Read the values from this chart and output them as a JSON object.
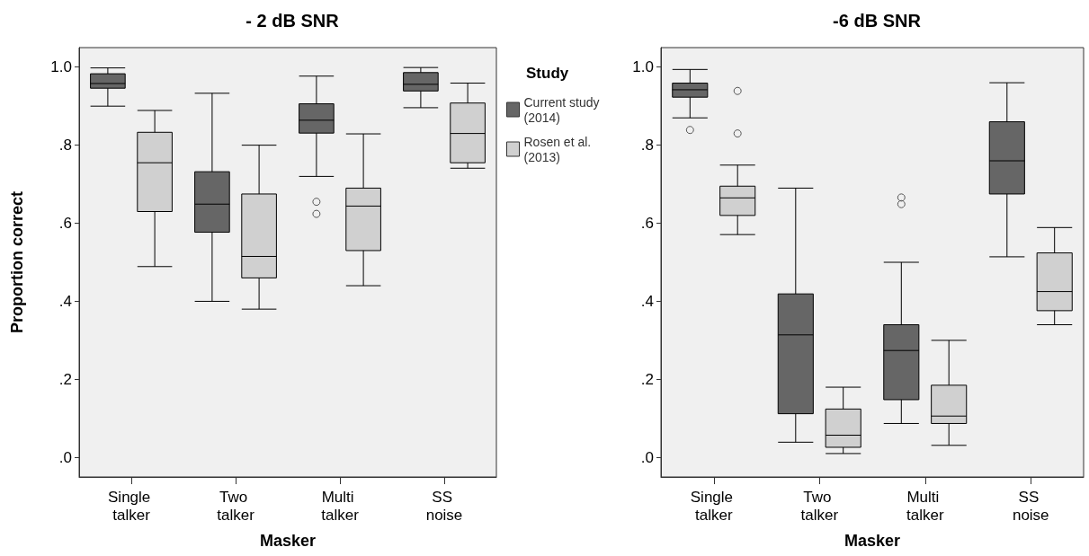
{
  "chart_data": [
    {
      "type": "box",
      "title": "- 2 dB SNR",
      "xlabel": "Masker",
      "ylabel": "Proportion correct",
      "legend_title": "Study",
      "legend": "right",
      "grid": false,
      "categories": [
        "Single talker",
        "Two talker",
        "Multi talker",
        "SS noise"
      ],
      "ylim": [
        -0.05,
        1.05
      ],
      "yticks": [
        {
          "value": 0,
          "label": ".0"
        },
        {
          "value": 0.2,
          "label": ".2"
        },
        {
          "value": 0.4,
          "label": ".4"
        },
        {
          "value": 0.6,
          "label": ".6"
        },
        {
          "value": 0.8,
          "label": ".8"
        },
        {
          "value": 1,
          "label": "1.0"
        }
      ],
      "series": [
        {
          "name": "Current study (2014)",
          "color": "#666666",
          "boxes": [
            {
              "low": 0.9,
              "q1": 0.946,
              "median": 0.958,
              "q3": 0.983,
              "high": 0.998
            },
            {
              "low": 0.4,
              "q1": 0.577,
              "median": 0.649,
              "q3": 0.732,
              "high": 0.933
            },
            {
              "low": 0.72,
              "q1": 0.831,
              "median": 0.864,
              "q3": 0.906,
              "high": 0.977,
              "outliers": [
                0.655,
                0.624
              ]
            },
            {
              "low": 0.896,
              "q1": 0.939,
              "median": 0.956,
              "q3": 0.986,
              "high": 0.999
            }
          ]
        },
        {
          "name": "Rosen et al. (2013)",
          "color": "#d0d0d0",
          "boxes": [
            {
              "low": 0.489,
              "q1": 0.63,
              "median": 0.755,
              "q3": 0.833,
              "high": 0.889
            },
            {
              "low": 0.38,
              "q1": 0.46,
              "median": 0.515,
              "q3": 0.675,
              "high": 0.8
            },
            {
              "low": 0.44,
              "q1": 0.53,
              "median": 0.644,
              "q3": 0.69,
              "high": 0.829
            },
            {
              "low": 0.741,
              "q1": 0.755,
              "median": 0.83,
              "q3": 0.908,
              "high": 0.959
            }
          ]
        }
      ]
    },
    {
      "type": "box",
      "title": "-6 dB SNR",
      "xlabel": "Masker",
      "grid": false,
      "categories": [
        "Single talker",
        "Two talker",
        "Multi talker",
        "SS noise"
      ],
      "ylim": [
        -0.05,
        1.05
      ],
      "yticks": [
        {
          "value": 0,
          "label": ".0"
        },
        {
          "value": 0.2,
          "label": ".2"
        },
        {
          "value": 0.4,
          "label": ".4"
        },
        {
          "value": 0.6,
          "label": ".6"
        },
        {
          "value": 0.8,
          "label": ".8"
        },
        {
          "value": 1,
          "label": "1.0"
        }
      ],
      "series": [
        {
          "color": "#666666",
          "boxes": [
            {
              "low": 0.87,
              "q1": 0.923,
              "median": 0.942,
              "q3": 0.959,
              "high": 0.994,
              "outliers": [
                0.839
              ]
            },
            {
              "low": 0.039,
              "q1": 0.112,
              "median": 0.314,
              "q3": 0.419,
              "high": 0.69
            },
            {
              "low": 0.087,
              "q1": 0.148,
              "median": 0.274,
              "q3": 0.34,
              "high": 0.5,
              "outliers": [
                0.666,
                0.649
              ]
            },
            {
              "low": 0.514,
              "q1": 0.675,
              "median": 0.76,
              "q3": 0.86,
              "high": 0.96
            }
          ]
        },
        {
          "color": "#d0d0d0",
          "boxes": [
            {
              "low": 0.571,
              "q1": 0.62,
              "median": 0.665,
              "q3": 0.695,
              "high": 0.749,
              "outliers": [
                0.83,
                0.939
              ]
            },
            {
              "low": 0.01,
              "q1": 0.026,
              "median": 0.057,
              "q3": 0.124,
              "high": 0.18
            },
            {
              "low": 0.031,
              "q1": 0.087,
              "median": 0.106,
              "q3": 0.185,
              "high": 0.3
            },
            {
              "low": 0.34,
              "q1": 0.376,
              "median": 0.425,
              "q3": 0.524,
              "high": 0.589
            }
          ]
        }
      ]
    }
  ]
}
